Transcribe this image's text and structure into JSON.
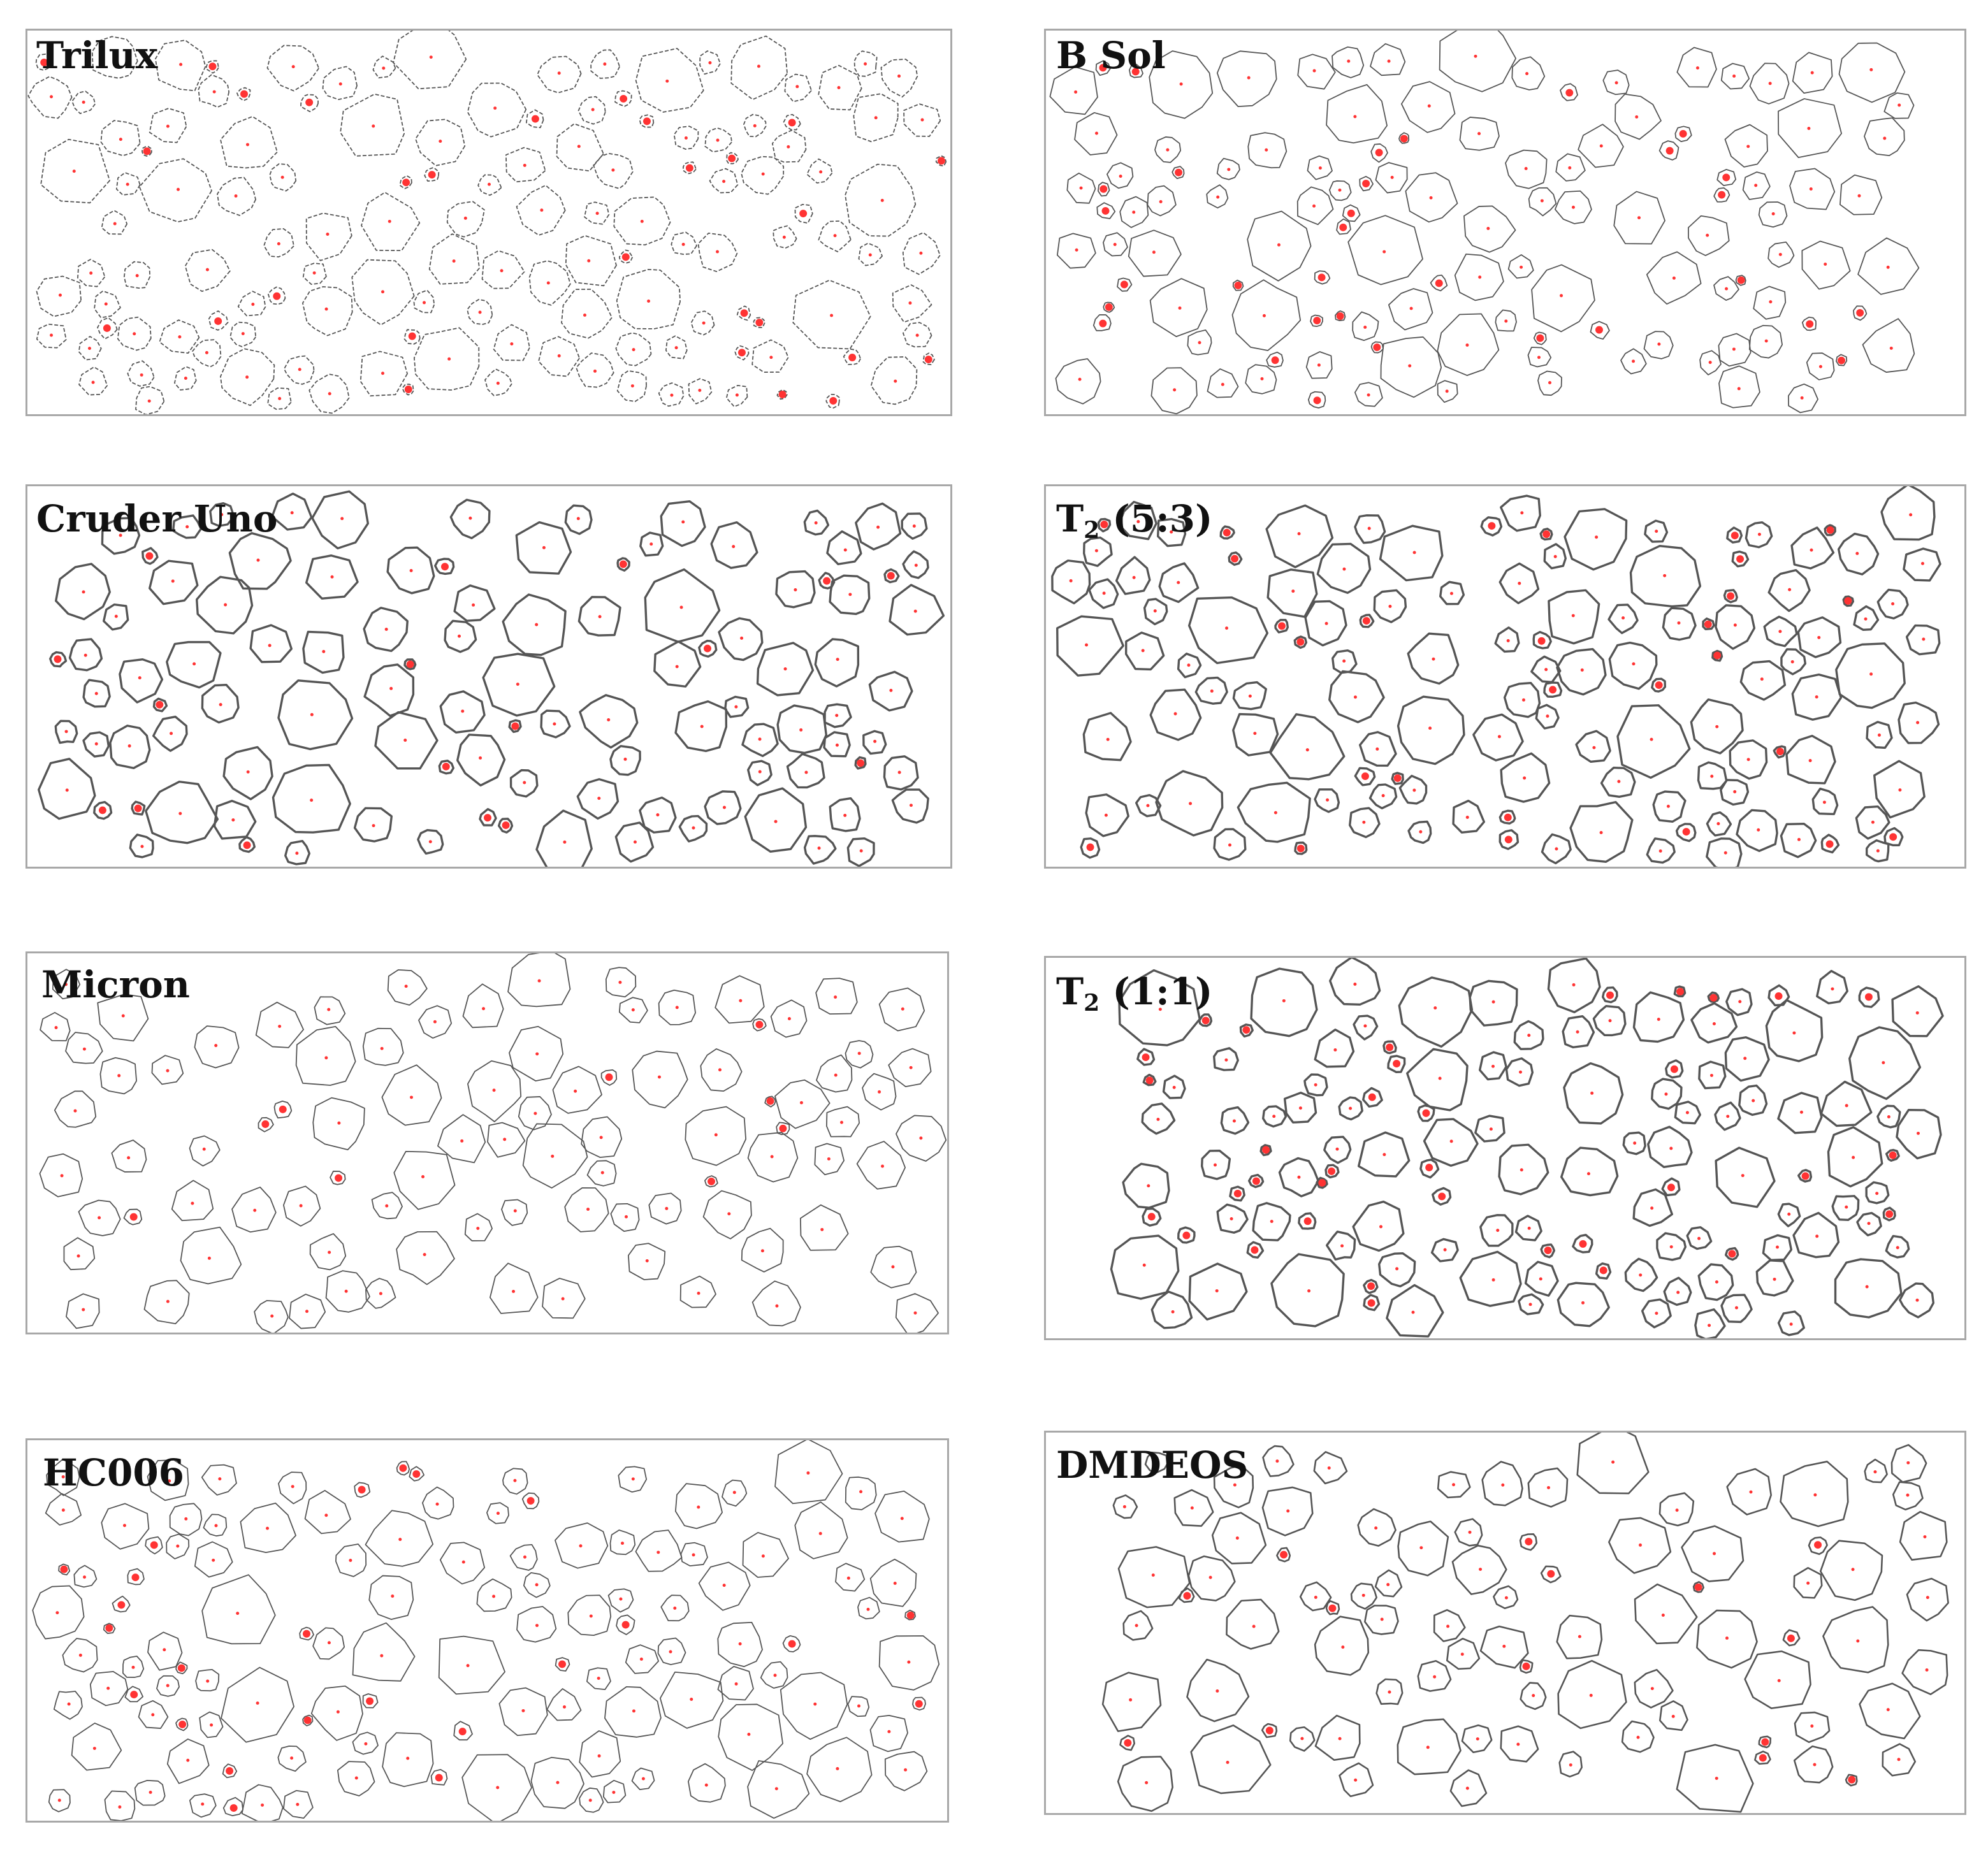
{
  "figure": {
    "panels": [
      {
        "id": "trilux",
        "label": "Trilux",
        "sub": "",
        "suffix": "",
        "cells": 135,
        "style": "dashed",
        "seed": 11
      },
      {
        "id": "bsol",
        "label": "B Sol",
        "sub": "",
        "suffix": "",
        "cells": 120,
        "style": "thin",
        "seed": 23
      },
      {
        "id": "cruder",
        "label": "Cruder Uno",
        "sub": "",
        "suffix": "",
        "cells": 105,
        "style": "bold",
        "seed": 37
      },
      {
        "id": "t253",
        "label": "T",
        "sub": "2",
        "suffix": " (5:3)",
        "cells": 125,
        "style": "bold",
        "seed": 41
      },
      {
        "id": "micron",
        "label": "Micron",
        "sub": "",
        "suffix": "",
        "cells": 90,
        "style": "thin",
        "seed": 53
      },
      {
        "id": "t211",
        "label": "T",
        "sub": "2",
        "suffix": " (1:1)",
        "cells": 125,
        "style": "bold",
        "seed": 67
      },
      {
        "id": "hc006",
        "label": "HC006",
        "sub": "",
        "suffix": "",
        "cells": 120,
        "style": "thin",
        "seed": 79
      },
      {
        "id": "dmdeos",
        "label": "DMDEOS",
        "sub": "",
        "suffix": "",
        "cells": 85,
        "style": "medium",
        "seed": 83
      }
    ]
  },
  "colors": {
    "cell_outline": "#555555",
    "centroid_marker": "#ff3333",
    "panel_border": "#a8a8a8"
  }
}
